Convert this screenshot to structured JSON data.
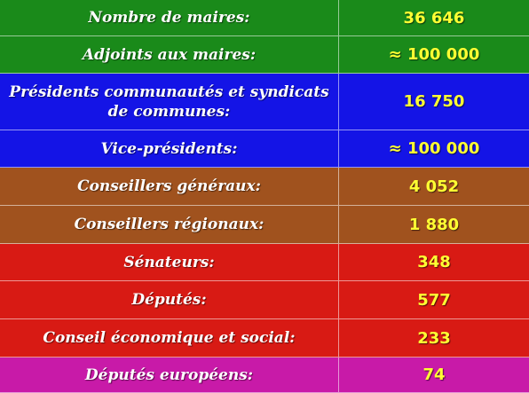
{
  "rows": [
    {
      "label": "Nombre de maires:",
      "value": "36 646",
      "color": "#1a8a1a"
    },
    {
      "label": "Adjoints aux maires:",
      "value": "≈ 100 000",
      "color": "#1a8a1a"
    },
    {
      "label": "Présidents communautés et syndicats de communes:",
      "value": "16 750",
      "color": "#1414e6"
    },
    {
      "label": "Vice-présidents:",
      "value": "≈ 100 000",
      "color": "#1414e6"
    },
    {
      "label": "Conseillers généraux:",
      "value": "4 052",
      "color": "#a0521e"
    },
    {
      "label": "Conseillers régionaux:",
      "value": "1 880",
      "color": "#a0521e"
    },
    {
      "label": "Sénateurs:",
      "value": "348",
      "color": "#d81a14"
    },
    {
      "label": "Députés:",
      "value": "577",
      "color": "#d81a14"
    },
    {
      "label": "Conseil économique et social:",
      "value": "233",
      "color": "#d81a14"
    },
    {
      "label": "Députés européens:",
      "value": "74",
      "color": "#c81aa8"
    }
  ]
}
